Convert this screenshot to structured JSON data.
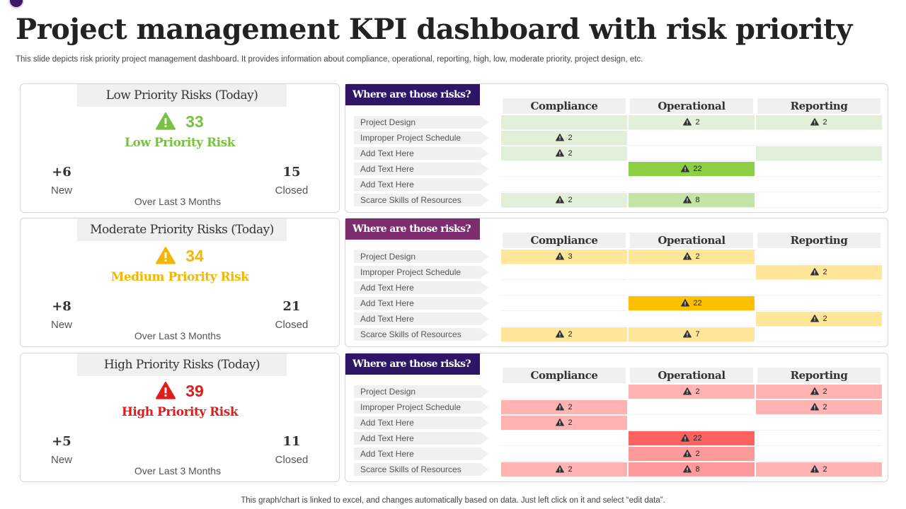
{
  "title": "Project management KPI dashboard with risk priority",
  "subtitle": "This slide depicts risk priority project management dashboard. It provides information about compliance, operational, reporting, high, low, moderate priority, project design, etc.",
  "footer": "This graph/chart is linked to excel,  and changes automatically based on data. Just left click on it and select “edit data”.",
  "columns": [
    "Compliance",
    "Operational",
    "Reporting"
  ],
  "rows": [
    "Project Design",
    "Improper Project Schedule",
    "Add Text Here",
    "Add Text Here",
    "Add Text Here",
    "Scarce Skills of Resources"
  ],
  "sections": [
    {
      "card_title": "Low Priority Risks (Today)",
      "count": "33",
      "label": "Low Priority Risk",
      "new_value": "+6",
      "new_label": "New",
      "closed_value": "15",
      "closed_label": "Closed",
      "period": "Over Last 3 Months",
      "accent": "#7ac143",
      "icon": "warning-triangle-icon",
      "panel_title": "Where are those risks?",
      "tab_color": "#2e1566",
      "shades": [
        "#ffffff",
        "#e2f0d9",
        "#c5e3a6",
        "#8ccf45"
      ],
      "cells": [
        [
          [
            "",
            1
          ],
          [
            "2",
            1
          ],
          [
            "2",
            1
          ]
        ],
        [
          [
            "2",
            1
          ],
          [
            "",
            0
          ],
          [
            "",
            0
          ]
        ],
        [
          [
            "2",
            1
          ],
          [
            "",
            0
          ],
          [
            "",
            1
          ]
        ],
        [
          [
            "",
            0
          ],
          [
            "22",
            3
          ],
          [
            "",
            0
          ]
        ],
        [
          [
            "",
            0
          ],
          [
            "",
            0
          ],
          [
            "",
            0
          ]
        ],
        [
          [
            "2",
            1
          ],
          [
            "8",
            2
          ],
          [
            "",
            0
          ]
        ]
      ]
    },
    {
      "card_title": "Moderate Priority Risks (Today)",
      "count": "34",
      "label": "Medium Priority Risk",
      "new_value": "+8",
      "new_label": "New",
      "closed_value": "21",
      "closed_label": "Closed",
      "period": "Over Last 3 Months",
      "accent": "#f2b705",
      "icon": "warning-triangle-icon",
      "panel_title": "Where are those risks?",
      "tab_color": "#7b2d6e",
      "shades": [
        "#ffffff",
        "#ffe699",
        "#ffd966",
        "#ffc000"
      ],
      "cells": [
        [
          [
            "3",
            1
          ],
          [
            "2",
            1
          ],
          [
            "",
            0
          ]
        ],
        [
          [
            "",
            0
          ],
          [
            "",
            0
          ],
          [
            "2",
            1
          ]
        ],
        [
          [
            "",
            0
          ],
          [
            "",
            0
          ],
          [
            "",
            0
          ]
        ],
        [
          [
            "",
            0
          ],
          [
            "22",
            3
          ],
          [
            "",
            0
          ]
        ],
        [
          [
            "",
            0
          ],
          [
            "",
            0
          ],
          [
            "2",
            1
          ]
        ],
        [
          [
            "2",
            1
          ],
          [
            "7",
            1
          ],
          [
            "",
            0
          ]
        ]
      ]
    },
    {
      "card_title": "High Priority Risks (Today)",
      "count": "39",
      "label": "High Priority Risk",
      "new_value": "+5",
      "new_label": "New",
      "closed_value": "11",
      "closed_label": "Closed",
      "period": "Over Last 3 Months",
      "accent": "#e01b1b",
      "icon": "warning-triangle-icon",
      "panel_title": "Where are those risks?",
      "tab_color": "#2e1566",
      "shades": [
        "#ffffff",
        "#ffb3b3",
        "#ff9a9a",
        "#ff6161"
      ],
      "cells": [
        [
          [
            "",
            0
          ],
          [
            "2",
            1
          ],
          [
            "2",
            1
          ]
        ],
        [
          [
            "2",
            1
          ],
          [
            "",
            0
          ],
          [
            "2",
            1
          ]
        ],
        [
          [
            "2",
            1
          ],
          [
            "",
            0
          ],
          [
            "",
            0
          ]
        ],
        [
          [
            "",
            0
          ],
          [
            "22",
            3
          ],
          [
            "",
            0
          ]
        ],
        [
          [
            "",
            0
          ],
          [
            "2",
            2
          ],
          [
            "",
            0
          ]
        ],
        [
          [
            "2",
            1
          ],
          [
            "8",
            2
          ],
          [
            "2",
            1
          ]
        ]
      ]
    }
  ]
}
